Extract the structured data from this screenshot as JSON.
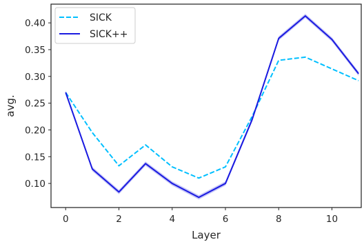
{
  "chart_data": {
    "type": "line",
    "title": "",
    "xlabel": "Layer",
    "ylabel": "avg.",
    "xlim": [
      -0.55,
      11.1
    ],
    "ylim": [
      0.055,
      0.435
    ],
    "x": [
      0,
      1,
      2,
      3,
      4,
      5,
      6,
      7,
      8,
      9,
      10,
      11
    ],
    "x_ticks": [
      "0",
      "2",
      "4",
      "6",
      "8",
      "10"
    ],
    "y_ticks": [
      "0.10",
      "0.15",
      "0.20",
      "0.25",
      "0.30",
      "0.35",
      "0.40"
    ],
    "grid": false,
    "legend_position": "top-left",
    "series": [
      {
        "name": "SICK",
        "color": "#00bfff",
        "style": "dashed",
        "values": [
          0.27,
          0.195,
          0.133,
          0.172,
          0.131,
          0.11,
          0.131,
          0.225,
          0.33,
          0.336,
          0.314,
          0.292
        ]
      },
      {
        "name": "SICK++",
        "color": "#1a1ae0",
        "style": "solid",
        "band": 0.004,
        "values": [
          0.27,
          0.127,
          0.084,
          0.137,
          0.1,
          0.074,
          0.1,
          0.219,
          0.371,
          0.413,
          0.369,
          0.305
        ]
      }
    ]
  }
}
